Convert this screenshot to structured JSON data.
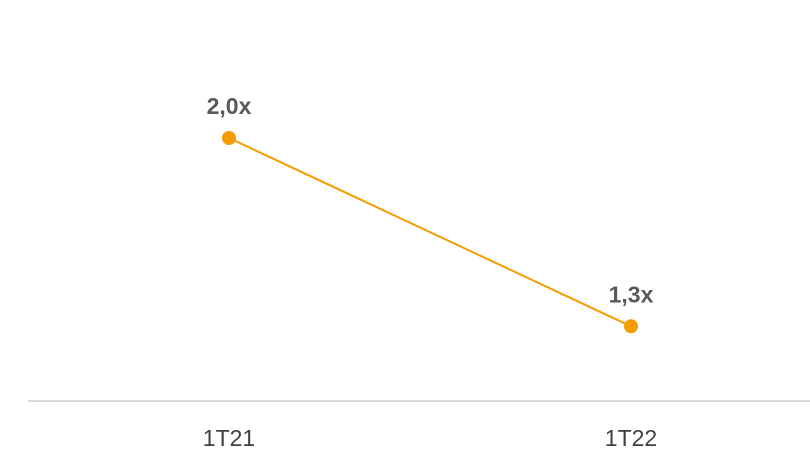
{
  "chart_data": {
    "type": "line",
    "categories": [
      "1T21",
      "1T22"
    ],
    "values": [
      2.0,
      1.3
    ],
    "value_labels": [
      "2,0x",
      "1,3x"
    ],
    "color": "#f59c00",
    "ylim": [
      1,
      2
    ]
  }
}
